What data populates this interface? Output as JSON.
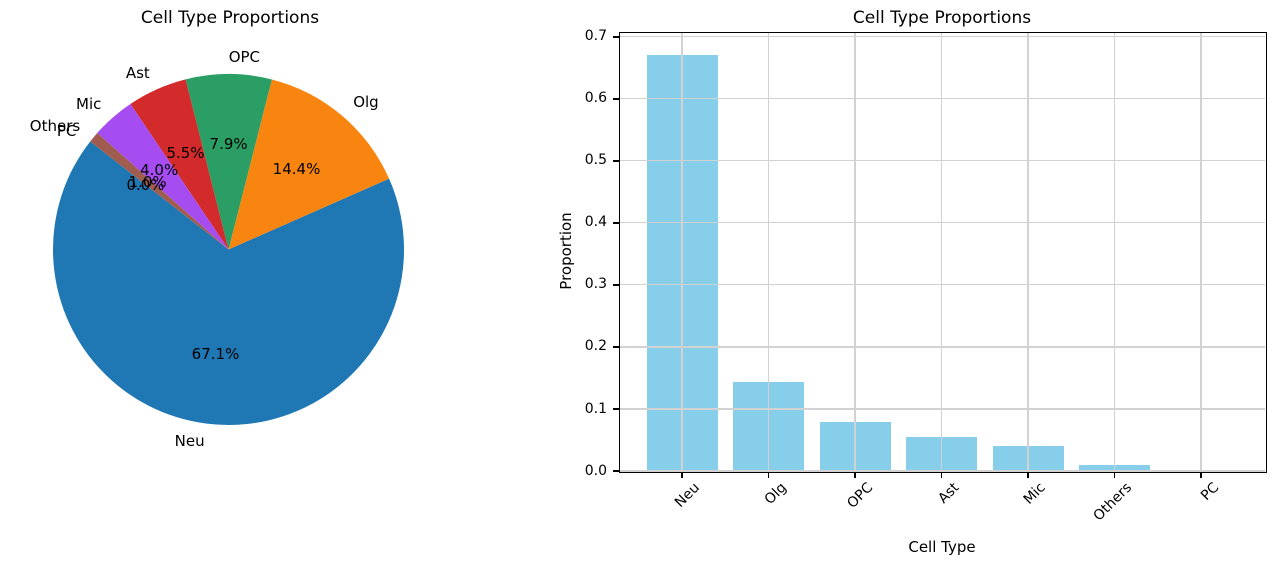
{
  "figure": {
    "background": "#FFFFFF"
  },
  "chart_data": [
    {
      "type": "pie",
      "title": "Cell Type Proportions",
      "categories": [
        "Neu",
        "Olg",
        "OPC",
        "Ast",
        "Mic",
        "Others",
        "PC"
      ],
      "values": [
        0.671,
        0.144,
        0.079,
        0.055,
        0.04,
        0.01,
        0.0
      ],
      "pct_labels": [
        "67.1%",
        "14.4%",
        "7.9%",
        "5.5%",
        "4.0%",
        "1.0%",
        "0.0%"
      ],
      "colors": [
        "#1F77B4",
        "#F98511",
        "#2A9E64",
        "#D32B2B",
        "#A64DF2",
        "#A15C50",
        "#E377C2"
      ],
      "start_angle_deg": 142,
      "counterclockwise": true,
      "label_distance": 1.1,
      "pct_distance": 0.6
    },
    {
      "type": "bar",
      "title": "Cell Type Proportions",
      "xlabel": "Cell Type",
      "ylabel": "Proportion",
      "categories": [
        "Neu",
        "Olg",
        "OPC",
        "Ast",
        "Mic",
        "Others",
        "PC"
      ],
      "values": [
        0.671,
        0.144,
        0.079,
        0.055,
        0.04,
        0.01,
        0.0
      ],
      "bar_color": "#87CEEB",
      "grid": true,
      "grid_color": "#D2D2D2",
      "spine_color": "#000000",
      "ylim": [
        0,
        0.706
      ],
      "y_ticks": [
        0.0,
        0.1,
        0.2,
        0.3,
        0.4,
        0.5,
        0.6,
        0.7
      ],
      "y_tick_labels": [
        "0.0",
        "0.1",
        "0.2",
        "0.3",
        "0.4",
        "0.5",
        "0.6",
        "0.7"
      ],
      "x_tick_rotation_deg": 45,
      "legend": "none"
    }
  ]
}
